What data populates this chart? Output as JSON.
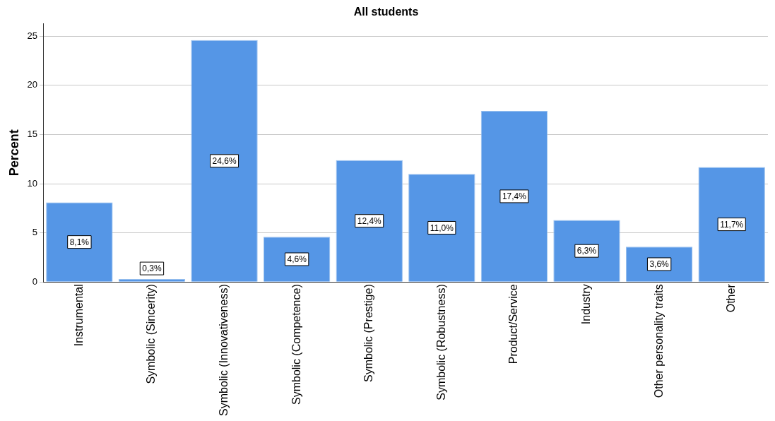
{
  "chart_data": {
    "type": "bar",
    "title": "All students",
    "ylabel": "Percent",
    "categories": [
      "Instrumental",
      "Symbolic (Sincerity)",
      "Symbolic (Innovativeness)",
      "Symbolic (Competence)",
      "Symbolic (Prestige)",
      "Symbolic (Robustness)",
      "Product/Service",
      "Industry",
      "Other personality traits",
      "Other"
    ],
    "values": [
      8.1,
      0.3,
      24.6,
      4.6,
      12.4,
      11.0,
      17.4,
      6.3,
      3.6,
      11.7
    ],
    "value_labels": [
      "8,1%",
      "0,3%",
      "24,6%",
      "4,6%",
      "12,4%",
      "11,0%",
      "17,4%",
      "6,3%",
      "3,6%",
      "11,7%"
    ],
    "color": "#5596e6",
    "ylim": [
      0,
      26.3
    ],
    "yticks": [
      0,
      5,
      10,
      15,
      20,
      25
    ],
    "grid": "y",
    "legend": false
  }
}
